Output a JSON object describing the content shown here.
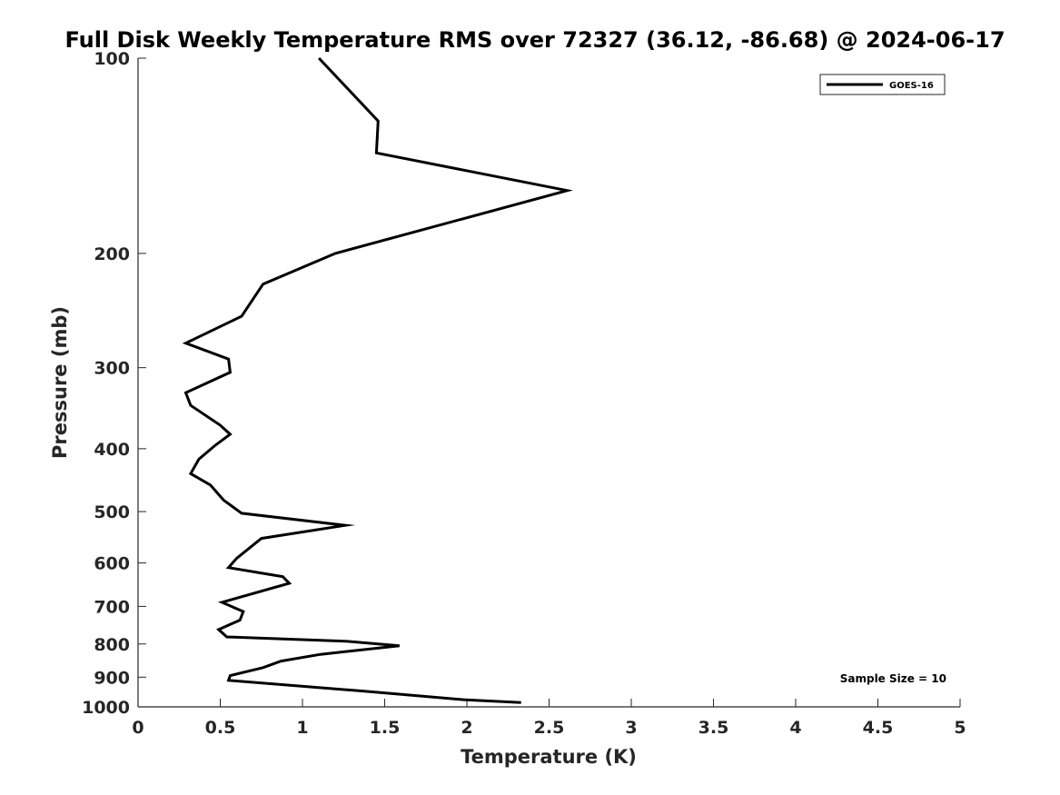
{
  "chart_data": {
    "type": "line",
    "title": "Full Disk Weekly Temperature RMS over 72327 (36.12, -86.68) @ 2024-06-17",
    "xlabel": "Temperature (K)",
    "ylabel": "Pressure (mb)",
    "xlim": [
      0,
      5
    ],
    "ylim": [
      1000,
      100
    ],
    "y_scale": "log",
    "x_ticks": [
      "0",
      "0.5",
      "1",
      "1.5",
      "2",
      "2.5",
      "3",
      "3.5",
      "4",
      "4.5",
      "5"
    ],
    "y_ticks": [
      "100",
      "200",
      "300",
      "400",
      "500",
      "600",
      "700",
      "800",
      "900",
      "1000"
    ],
    "grid": false,
    "legend_position": "top-right",
    "annotation": "Sample Size = 10",
    "series": [
      {
        "name": "GOES-16",
        "color": "#000000",
        "x": [
          1.1,
          1.46,
          1.45,
          2.61,
          1.2,
          0.76,
          0.63,
          0.29,
          0.55,
          0.56,
          0.29,
          0.32,
          0.5,
          0.56,
          0.47,
          0.37,
          0.32,
          0.44,
          0.52,
          0.63,
          1.26,
          0.75,
          0.6,
          0.55,
          0.88,
          0.92,
          0.51,
          0.64,
          0.62,
          0.49,
          0.54,
          1.26,
          1.59,
          1.11,
          0.87,
          0.76,
          0.56,
          0.55,
          1.36,
          1.98,
          2.33
        ],
        "y": [
          100,
          125,
          140,
          160,
          200,
          223,
          250,
          275,
          291,
          305,
          328,
          343,
          368,
          380,
          395,
          415,
          437,
          455,
          480,
          503,
          525,
          550,
          590,
          610,
          630,
          645,
          690,
          713,
          735,
          760,
          780,
          792,
          805,
          830,
          850,
          870,
          895,
          910,
          945,
          975,
          985
        ]
      }
    ]
  }
}
